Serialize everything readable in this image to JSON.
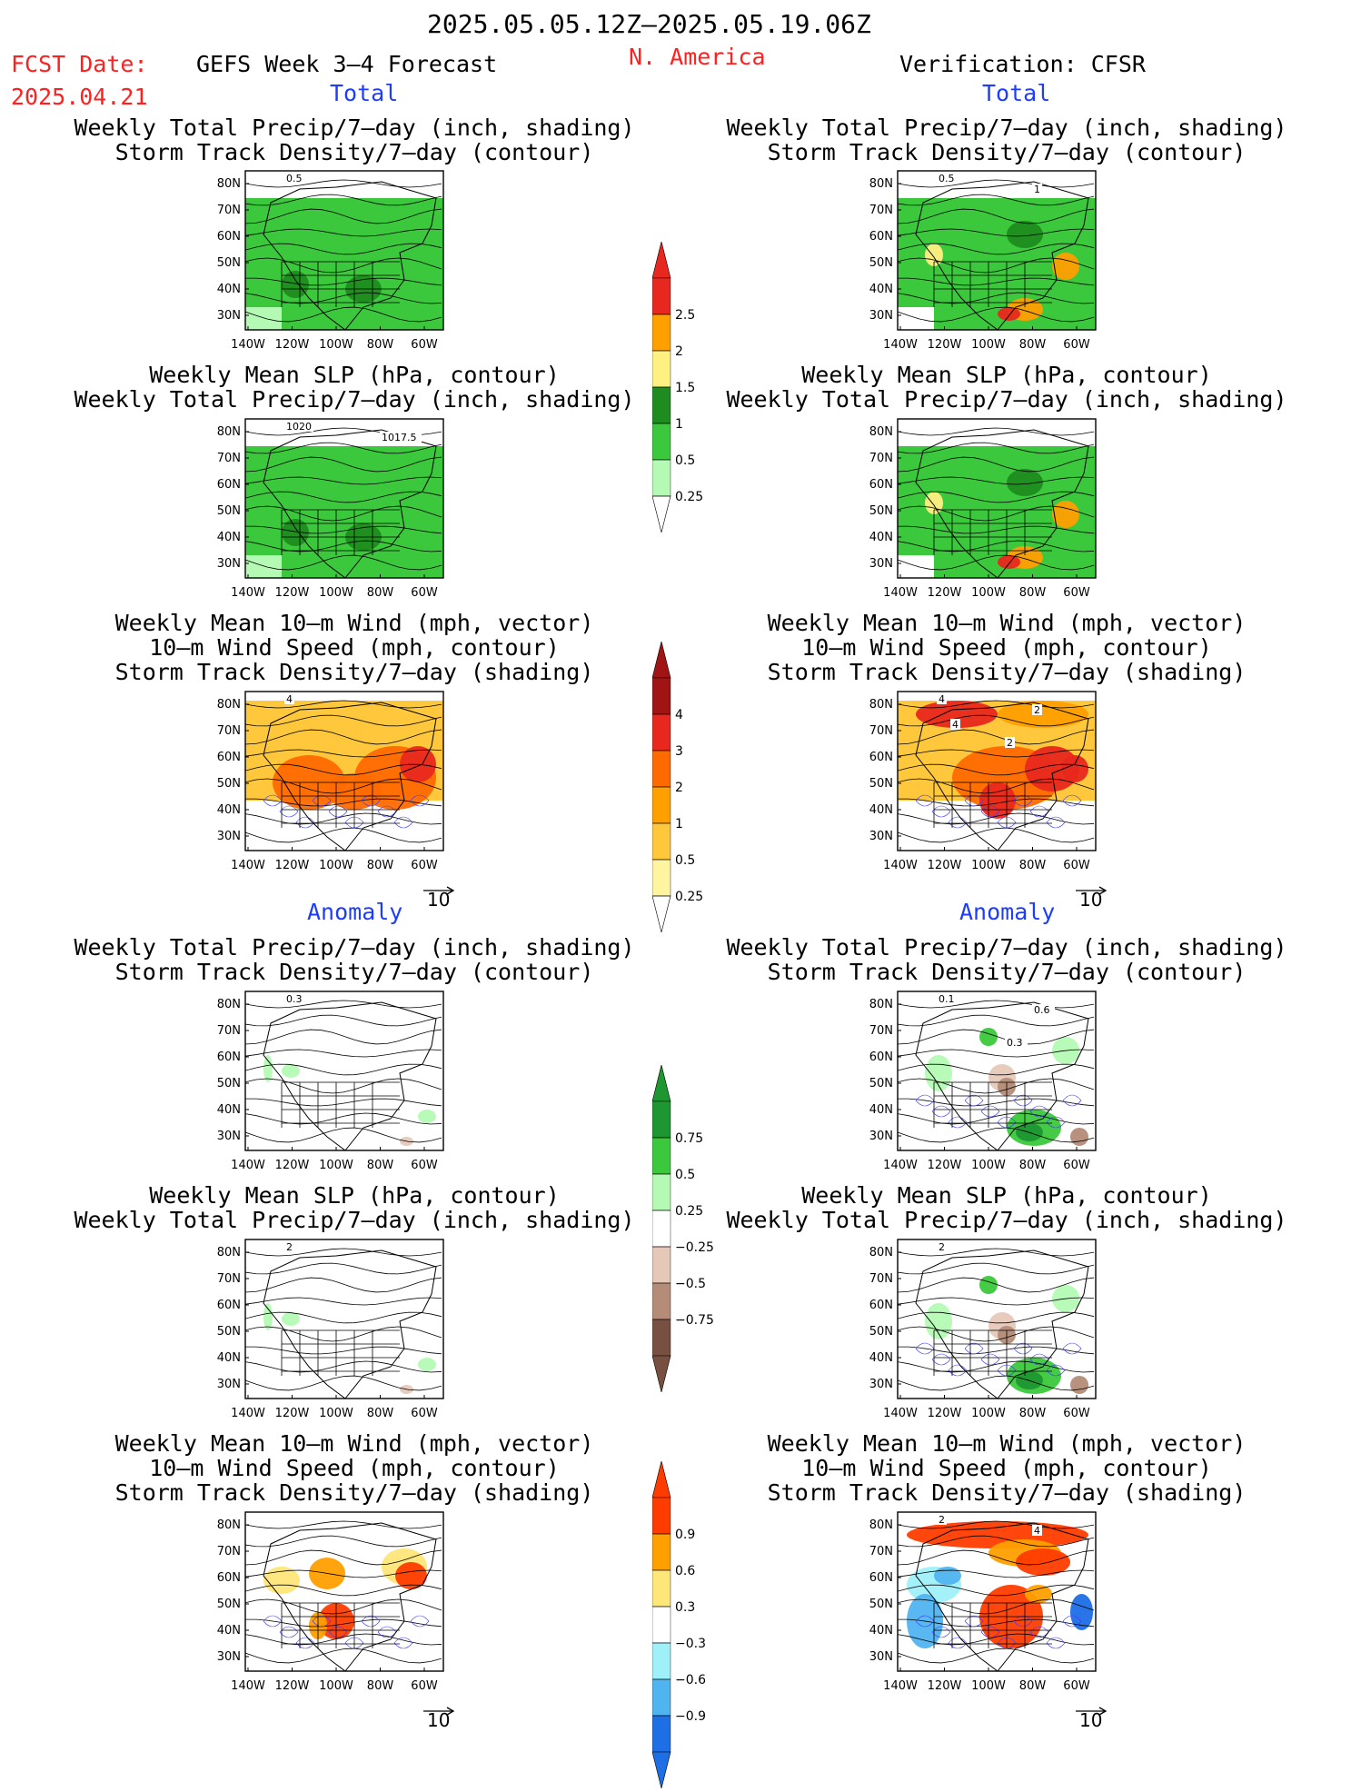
{
  "header": {
    "period": "2025.05.05.12Z–2025.05.19.06Z",
    "fcst_label": "FCST Date:",
    "fcst_date": "2025.04.21",
    "product": "GEFS Week 3–4 Forecast",
    "region": "N. America",
    "verification": "Verification: CFSR"
  },
  "section_labels": {
    "total": "Total",
    "anomaly": "Anomaly"
  },
  "titles": {
    "precip_storm": [
      "Weekly Total Precip/7–day (inch, shading)",
      "Storm Track Density/7–day (contour)"
    ],
    "slp_precip": [
      "Weekly Mean SLP (hPa, contour)",
      "Weekly Total Precip/7–day (inch, shading)"
    ],
    "wind_storm": [
      "Weekly Mean 10–m Wind (mph, vector)",
      "10–m Wind Speed (mph, contour)",
      "Storm Track Density/7–day (shading)"
    ]
  },
  "axes": {
    "lat_ticks": [
      "80N",
      "70N",
      "60N",
      "50N",
      "40N",
      "30N"
    ],
    "lon_ticks": [
      "140W",
      "120W",
      "100W",
      "80W",
      "60W"
    ]
  },
  "vector_reference": "10",
  "colorbars": {
    "precip_total": {
      "labels": [
        "2.5",
        "2",
        "1.5",
        "1",
        "0.5",
        "0.25"
      ],
      "colors": [
        "#e8281e",
        "#ff9f00",
        "#fff082",
        "#1e8c1e",
        "#3cc83c",
        "#b4fab4"
      ]
    },
    "storm_total": {
      "labels": [
        "4",
        "3",
        "2",
        "1",
        "0.5",
        "0.25"
      ],
      "colors": [
        "#a01414",
        "#e8281e",
        "#ff6a00",
        "#ff9f00",
        "#ffc83c",
        "#fff5a0"
      ]
    },
    "precip_anom": {
      "labels": [
        "0.75",
        "0.5",
        "0.25",
        "−0.25",
        "−0.5",
        "−0.75"
      ],
      "colors": [
        "#1e9632",
        "#3cc83c",
        "#b4fab4",
        "#ffffff",
        "#e6c8b9",
        "#b48c78",
        "#785041"
      ]
    },
    "storm_anom": {
      "labels": [
        "0.9",
        "0.6",
        "0.3",
        "−0.3",
        "−0.6",
        "−0.9"
      ],
      "colors": [
        "#ff3c00",
        "#ff9f00",
        "#ffe678",
        "#ffffff",
        "#a0f0fa",
        "#50b4f0",
        "#1e6ee6"
      ]
    }
  },
  "contour_labels": {
    "p1": [
      "0.5"
    ],
    "p2": [
      "1020",
      "1017.5"
    ],
    "p3": [
      "4"
    ],
    "p4": [
      "0.3"
    ],
    "p5": [
      "2"
    ],
    "p7": [
      "0.5",
      "1"
    ],
    "p9": [
      "4",
      "2",
      "2",
      "4"
    ],
    "p10": [
      "0.1",
      "0.6",
      "0.3"
    ],
    "p11": [
      "2"
    ],
    "p12": [
      "2",
      "4"
    ]
  }
}
